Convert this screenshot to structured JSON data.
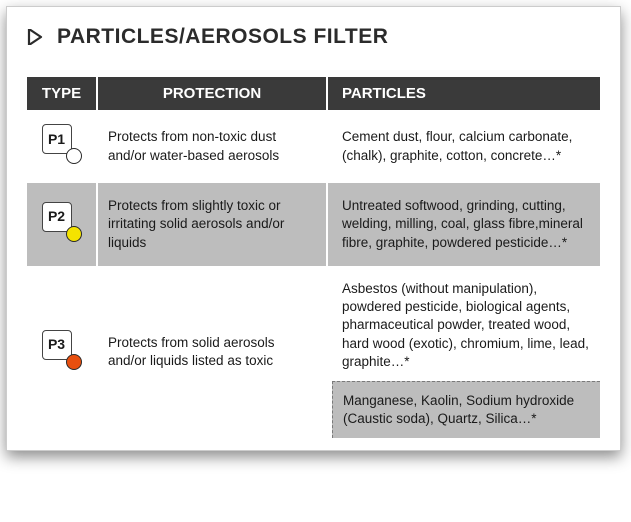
{
  "title": "PARTICLES/AEROSOLS FILTER",
  "arrow_color": "#2b2b2b",
  "header_bg": "#3a3a3a",
  "header_fg": "#ffffff",
  "alt_row_bg": "#bdbdbd",
  "columns": [
    "TYPE",
    "PROTECTION",
    "PARTICLES"
  ],
  "rows": [
    {
      "type_label": "P1",
      "dot_fill": "#ffffff",
      "dot_border": "#2a2a2a",
      "protection": "Protects from non-toxic dust and/or water-based aerosols",
      "particles": "Cement dust, flour, calcium carbonate, (chalk), graphite, cotton, concrete…*",
      "alt": false
    },
    {
      "type_label": "P2",
      "dot_fill": "#f4e300",
      "dot_border": "#2a2a2a",
      "protection": "Protects from slightly toxic or irritating solid aerosols and/or liquids",
      "particles": "Untreated softwood, grinding, cutting, welding, milling, coal, glass fibre,mineral fibre, graphite, powdered pesticide…*",
      "alt": true
    },
    {
      "type_label": "P3",
      "dot_fill": "#e84f0f",
      "dot_border": "#2a2a2a",
      "protection": "Protects from solid aerosols and/or liquids listed as toxic",
      "particles": "Asbestos (without manipulation), powdered pesticide, biological agents, pharmaceutical powder, treated wood, hard wood (exotic), chromium, lime, lead, graphite…*",
      "particles_extra": "Manganese, Kaolin, Sodium hydroxide (Caustic soda), Quartz, Silica…*",
      "alt": false
    }
  ]
}
